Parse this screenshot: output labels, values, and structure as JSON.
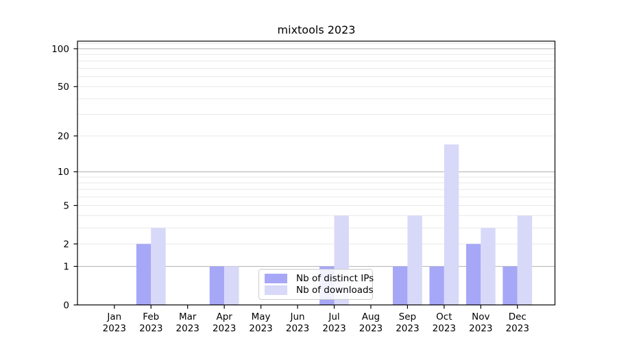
{
  "chart_data": {
    "type": "bar",
    "title": "mixtools 2023",
    "categories": [
      "Jan",
      "Feb",
      "Mar",
      "Apr",
      "May",
      "Jun",
      "Jul",
      "Aug",
      "Sep",
      "Oct",
      "Nov",
      "Dec"
    ],
    "category_year": "2023",
    "series": [
      {
        "name": "Nb of distinct IPs",
        "color": "#a7a7f7",
        "values": [
          0,
          2,
          0,
          1,
          0,
          0,
          1,
          0,
          1,
          1,
          2,
          1
        ]
      },
      {
        "name": "Nb of downloads",
        "color": "#d8d8f9",
        "values": [
          0,
          3,
          0,
          1,
          0,
          0,
          4,
          0,
          4,
          17,
          3,
          4
        ]
      }
    ],
    "xlabel": "",
    "ylabel": "",
    "yscale": "log1p",
    "ylim": [
      0,
      115
    ],
    "yticks": [
      0,
      1,
      2,
      5,
      10,
      20,
      50,
      100
    ],
    "grid": {
      "major_lines": [
        1,
        10,
        100
      ],
      "minor_lines": [
        2,
        3,
        4,
        5,
        6,
        7,
        8,
        9,
        20,
        30,
        40,
        50,
        60,
        70,
        80,
        90,
        110
      ],
      "major_color": "#b0b0b0",
      "minor_color": "#e8e8e8"
    },
    "legend": {
      "position": "lower-center"
    },
    "colors": {
      "spine": "#000000",
      "tick_label": "#000000"
    }
  }
}
